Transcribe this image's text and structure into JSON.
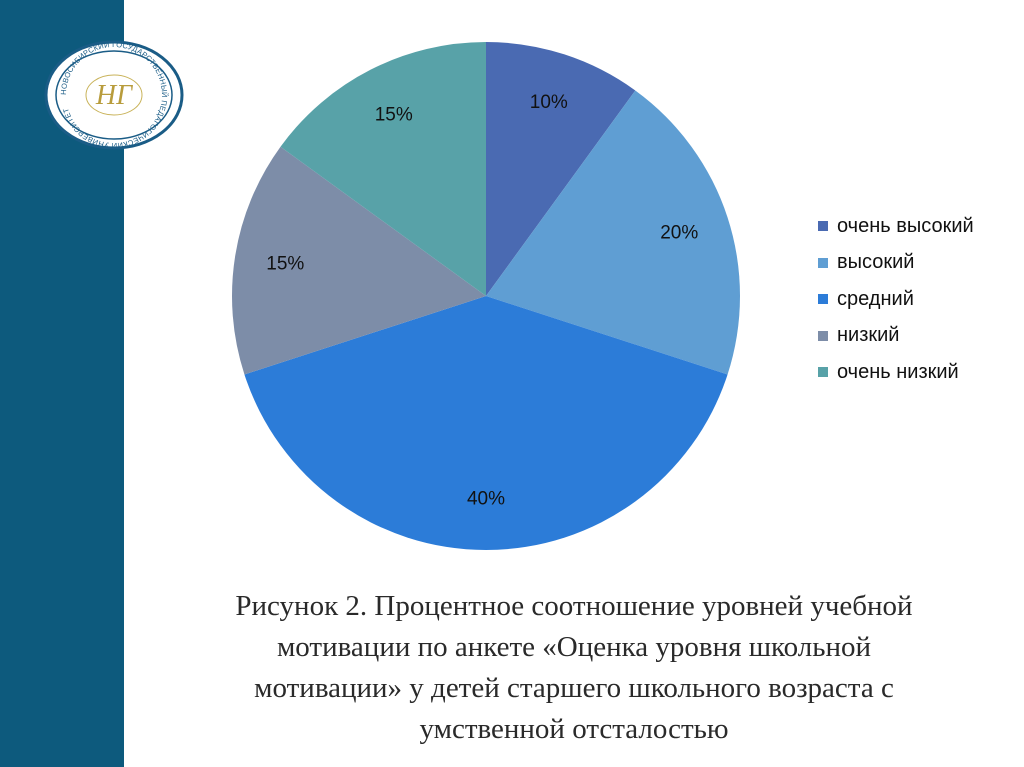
{
  "chart_data": {
    "type": "pie",
    "categories": [
      "очень высокий",
      "высокий",
      "средний",
      "низкий",
      "очень низкий"
    ],
    "values": [
      10,
      20,
      40,
      15,
      15
    ],
    "data_labels": [
      "10%",
      "20%",
      "40%",
      "15%",
      "15%"
    ],
    "colors": [
      "#4a6ab2",
      "#5f9ed3",
      "#2c7cd8",
      "#7d8da8",
      "#58a2a8"
    ],
    "legend_position": "right"
  },
  "caption": {
    "line1": "Рисунок 2. Процентное соотношение уровней учебной",
    "line2": "мотивации по анкете «Оценка уровня школьной",
    "line3": "мотивации» у детей старшего школьного возраста с",
    "line4": "умственной отсталостью"
  },
  "logo": {
    "ring_text": "НОВОСИБИРСКИЙ ГОСУДАРСТВЕННЫЙ ПЕДАГОГИЧЕСКИЙ УНИВЕРСИТЕТ",
    "monogram": "НГ"
  },
  "colors": {
    "band": "#0d5a7d",
    "logo_ring": "#1a5c86"
  }
}
